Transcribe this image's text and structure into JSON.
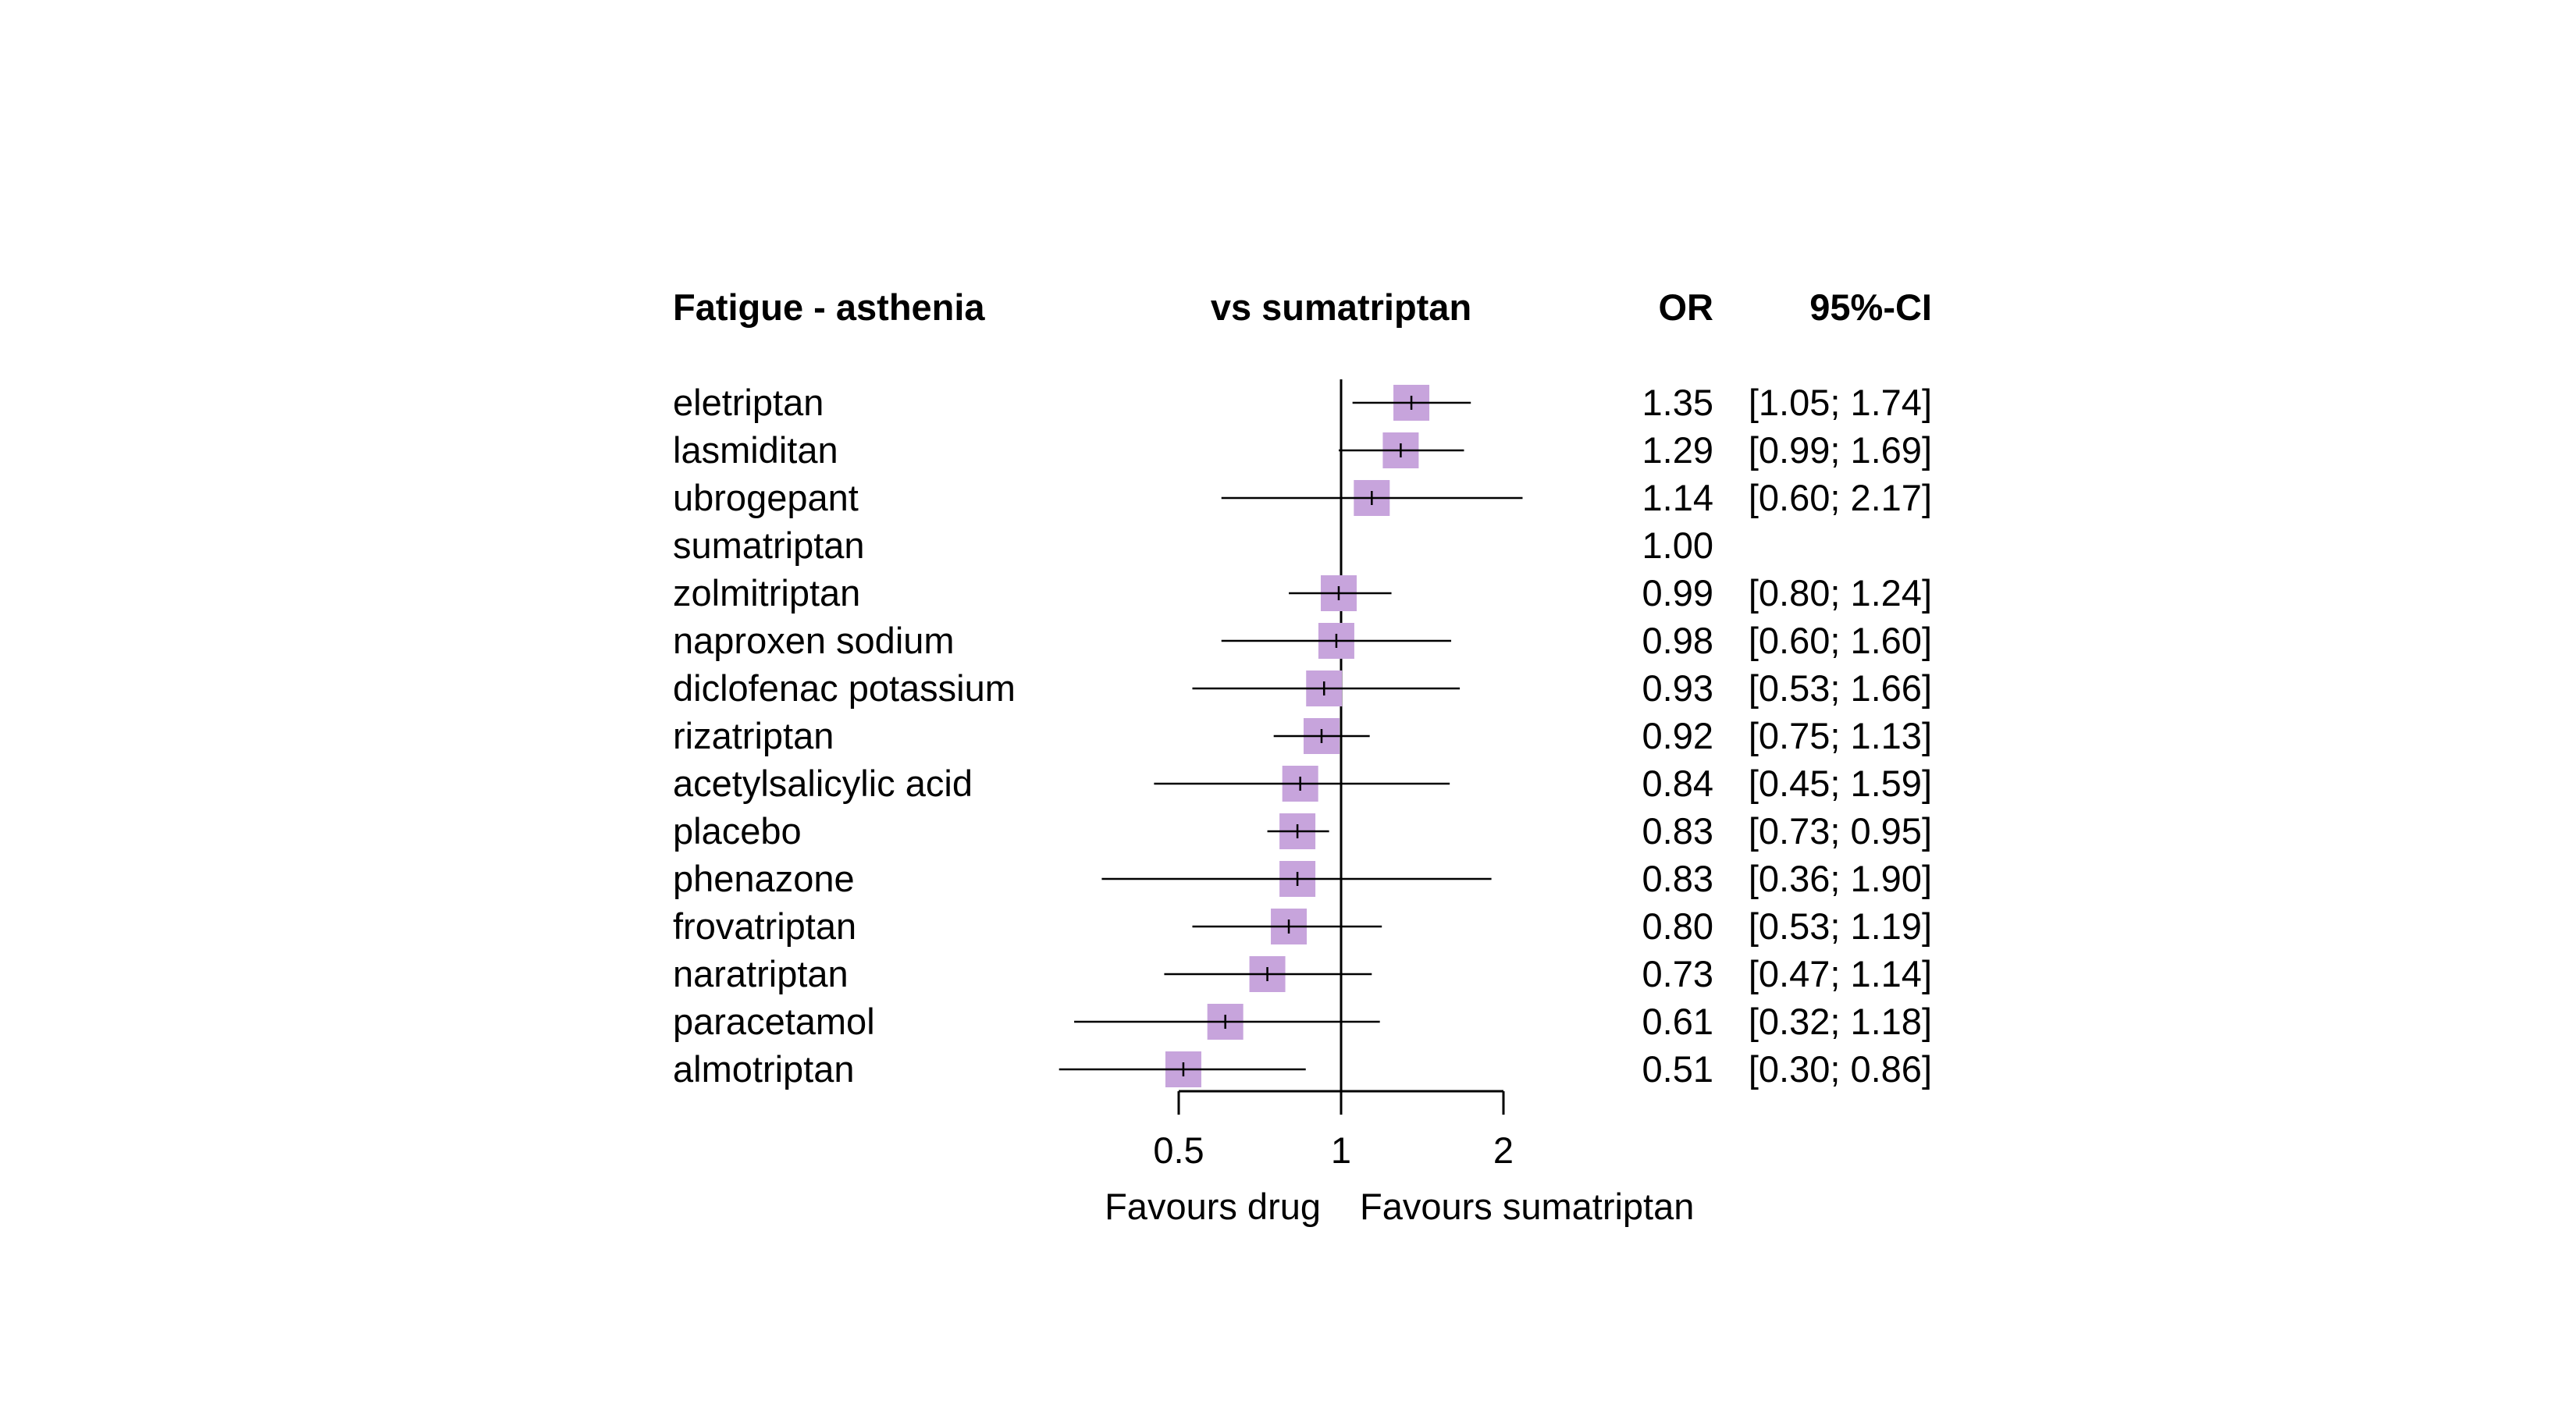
{
  "chart_data": {
    "type": "forest",
    "title": "Fatigue - asthenia",
    "comparison_label": "vs sumatriptan",
    "col_or": "OR",
    "col_ci": "95%-CI",
    "xscale": "log",
    "xlim": [
      0.29,
      2.3
    ],
    "ticks": [
      0.5,
      1,
      2
    ],
    "tick_labels": [
      "0.5",
      "1",
      "2"
    ],
    "reference": 1,
    "xlabel_left": "Favours drug",
    "xlabel_right": "Favours sumatriptan",
    "marker_color": "#c7a4dc",
    "rows": [
      {
        "name": "eletriptan",
        "or": 1.35,
        "lo": 1.05,
        "hi": 1.74,
        "or_text": "1.35",
        "ci_text": "[1.05; 1.74]"
      },
      {
        "name": "lasmiditan",
        "or": 1.29,
        "lo": 0.99,
        "hi": 1.69,
        "or_text": "1.29",
        "ci_text": "[0.99; 1.69]"
      },
      {
        "name": "ubrogepant",
        "or": 1.14,
        "lo": 0.6,
        "hi": 2.17,
        "or_text": "1.14",
        "ci_text": "[0.60; 2.17]"
      },
      {
        "name": "sumatriptan",
        "or": 1.0,
        "lo": null,
        "hi": null,
        "or_text": "1.00",
        "ci_text": ""
      },
      {
        "name": "zolmitriptan",
        "or": 0.99,
        "lo": 0.8,
        "hi": 1.24,
        "or_text": "0.99",
        "ci_text": "[0.80; 1.24]"
      },
      {
        "name": "naproxen sodium",
        "or": 0.98,
        "lo": 0.6,
        "hi": 1.6,
        "or_text": "0.98",
        "ci_text": "[0.60; 1.60]"
      },
      {
        "name": "diclofenac potassium",
        "or": 0.93,
        "lo": 0.53,
        "hi": 1.66,
        "or_text": "0.93",
        "ci_text": "[0.53; 1.66]"
      },
      {
        "name": "rizatriptan",
        "or": 0.92,
        "lo": 0.75,
        "hi": 1.13,
        "or_text": "0.92",
        "ci_text": "[0.75; 1.13]"
      },
      {
        "name": "acetylsalicylic acid",
        "or": 0.84,
        "lo": 0.45,
        "hi": 1.59,
        "or_text": "0.84",
        "ci_text": "[0.45; 1.59]"
      },
      {
        "name": "placebo",
        "or": 0.83,
        "lo": 0.73,
        "hi": 0.95,
        "or_text": "0.83",
        "ci_text": "[0.73; 0.95]"
      },
      {
        "name": "phenazone",
        "or": 0.83,
        "lo": 0.36,
        "hi": 1.9,
        "or_text": "0.83",
        "ci_text": "[0.36; 1.90]"
      },
      {
        "name": "frovatriptan",
        "or": 0.8,
        "lo": 0.53,
        "hi": 1.19,
        "or_text": "0.80",
        "ci_text": "[0.53; 1.19]"
      },
      {
        "name": "naratriptan",
        "or": 0.73,
        "lo": 0.47,
        "hi": 1.14,
        "or_text": "0.73",
        "ci_text": "[0.47; 1.14]"
      },
      {
        "name": "paracetamol",
        "or": 0.61,
        "lo": 0.32,
        "hi": 1.18,
        "or_text": "0.61",
        "ci_text": "[0.32; 1.18]"
      },
      {
        "name": "almotriptan",
        "or": 0.51,
        "lo": 0.3,
        "hi": 0.86,
        "or_text": "0.51",
        "ci_text": "[0.30; 0.86]"
      }
    ]
  }
}
